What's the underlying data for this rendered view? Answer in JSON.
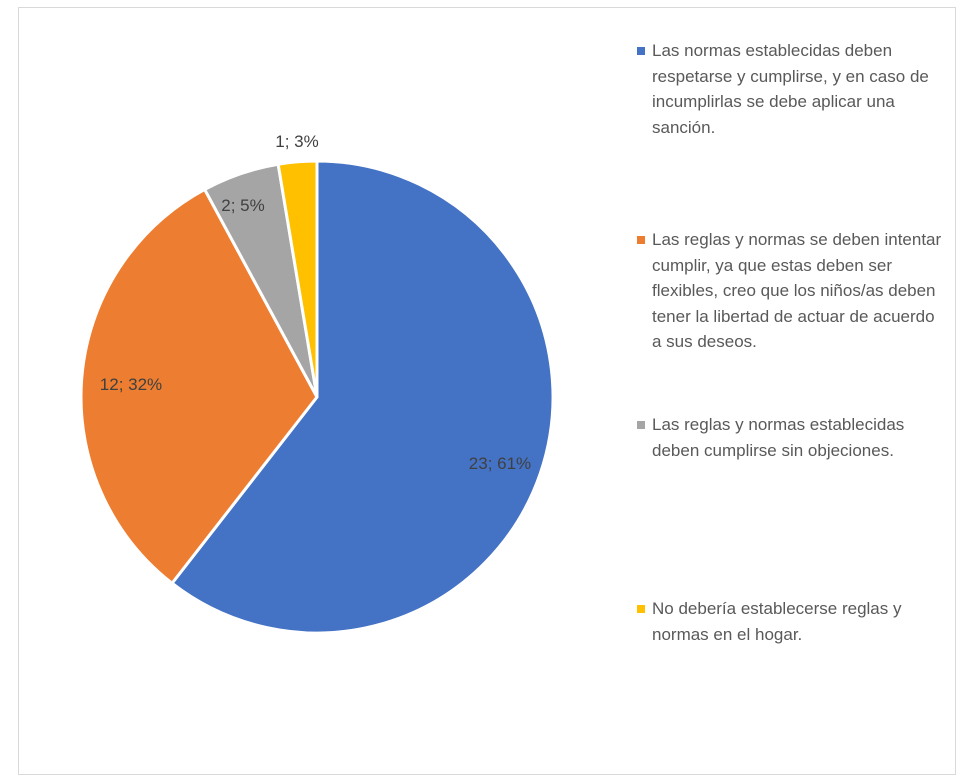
{
  "chart_data": {
    "type": "pie",
    "title": "",
    "start_angle_deg": 0,
    "direction": "clockwise",
    "legend_position": "right",
    "slices": [
      {
        "name": "Las normas establecidas deben respetarse y cumplirse, y en caso de incumplirlas se debe aplicar una sanción.",
        "value": 23,
        "percent": 61,
        "label": "23; 61%",
        "color": "#4472C4"
      },
      {
        "name": "Las reglas y normas se deben intentar cumplir, ya que estas deben ser flexibles, creo que los niños/as deben tener la libertad de actuar de acuerdo a sus deseos.",
        "value": 12,
        "percent": 32,
        "label": "12; 32%",
        "color": "#ED7D31"
      },
      {
        "name": "Las reglas y normas establecidas deben cumplirse sin objeciones.",
        "value": 2,
        "percent": 5,
        "label": "2; 5%",
        "color": "#A5A5A5"
      },
      {
        "name": "No debería establecerse reglas y normas en el hogar.",
        "value": 1,
        "percent": 3,
        "label": "1; 3%",
        "color": "#FFC000"
      }
    ]
  }
}
